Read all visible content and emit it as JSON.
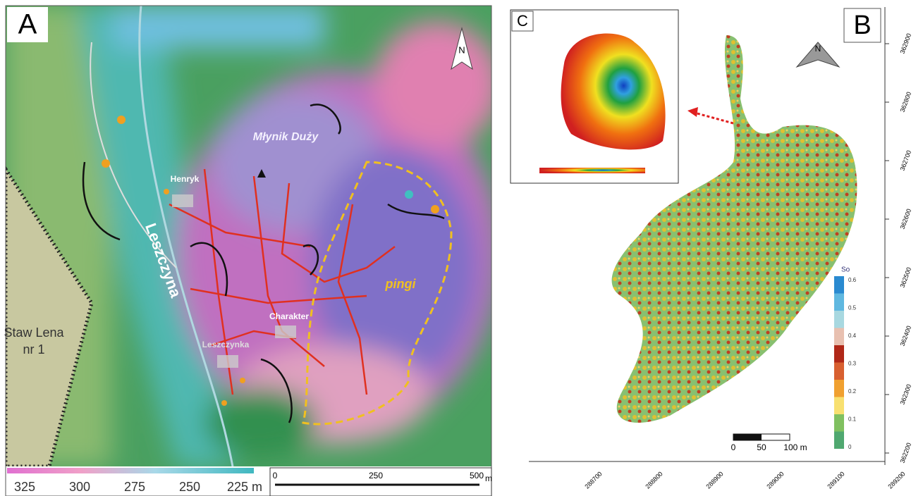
{
  "panel_a": {
    "label": "A",
    "north": "N",
    "places": {
      "mlynik": "Młynik Duży",
      "henryk": "Henryk",
      "river": "Leszczyna",
      "charakter": "Charakter",
      "leszczynka": "Leszczynka",
      "pingi": "pingi",
      "pond": [
        "Staw Lena",
        "nr 1"
      ]
    },
    "colorbar_labels": [
      "325",
      "300",
      "275",
      "250",
      "225 m"
    ],
    "scale_labels": [
      "0",
      "250",
      "500"
    ],
    "scale_unit": "m"
  },
  "panel_b": {
    "label": "B",
    "inset_label": "C",
    "north": "N",
    "y_labels": [
      "362900",
      "362800",
      "362700",
      "362600",
      "362500",
      "362400",
      "362300",
      "362200"
    ],
    "x_labels": [
      "288700",
      "288800",
      "288900",
      "289000",
      "289100",
      "289200"
    ],
    "legend_title": "So",
    "legend_labels": [
      "0.6",
      "0.5",
      "0.4",
      "0.3",
      "0.2",
      "0.1",
      "0"
    ],
    "scale_labels": [
      "0",
      "50",
      "100 m"
    ]
  }
}
